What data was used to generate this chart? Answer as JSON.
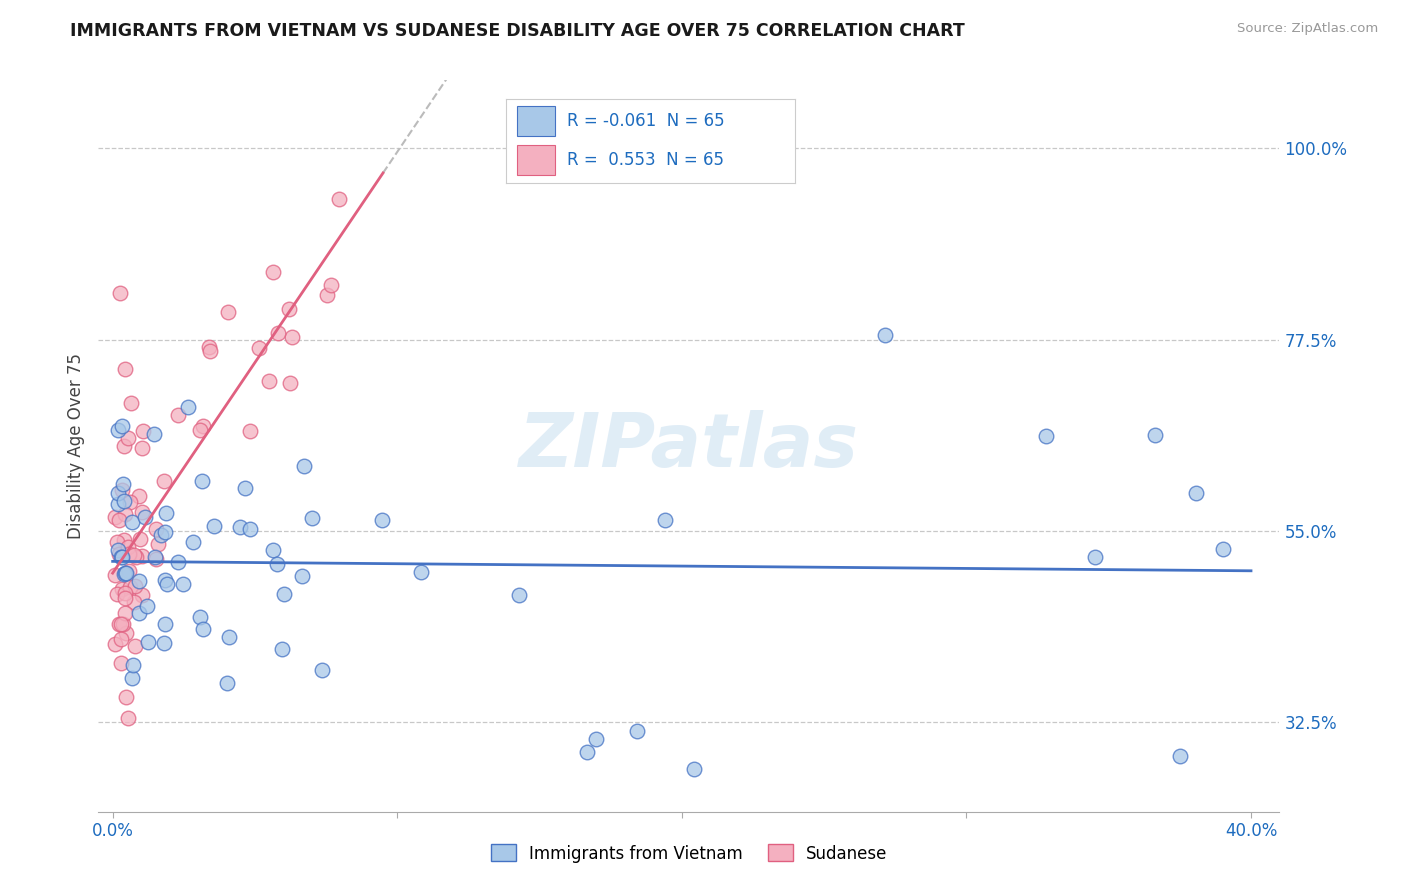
{
  "title": "IMMIGRANTS FROM VIETNAM VS SUDANESE DISABILITY AGE OVER 75 CORRELATION CHART",
  "source": "Source: ZipAtlas.com",
  "ylabel": "Disability Age Over 75",
  "y_ticks": [
    32.5,
    55.0,
    77.5,
    100.0
  ],
  "y_tick_labels": [
    "32.5%",
    "55.0%",
    "77.5%",
    "100.0%"
  ],
  "x_ticks": [
    0.0,
    10.0,
    20.0,
    30.0,
    40.0
  ],
  "x_tick_labels": [
    "0.0%",
    "",
    "",
    "",
    "40.0%"
  ],
  "r_vietnam": -0.061,
  "n_vietnam": 65,
  "r_sudanese": 0.553,
  "n_sudanese": 65,
  "color_vietnam": "#a8c8e8",
  "color_sudanese": "#f4b0c0",
  "color_trendline_vietnam": "#4472c4",
  "color_trendline_sudanese": "#e06080",
  "legend_label_vietnam": "Immigrants from Vietnam",
  "legend_label_sudanese": "Sudanese",
  "watermark": "ZIPatlas",
  "background_color": "#ffffff",
  "grid_color": "#c8c8c8",
  "title_color": "#1a1a1a",
  "axis_label_color": "#1e6cbf",
  "vietnam_seed": 42,
  "sudanese_seed": 123,
  "xlim_min": -0.5,
  "xlim_max": 41.0,
  "ylim_min": 22.0,
  "ylim_max": 108.0
}
